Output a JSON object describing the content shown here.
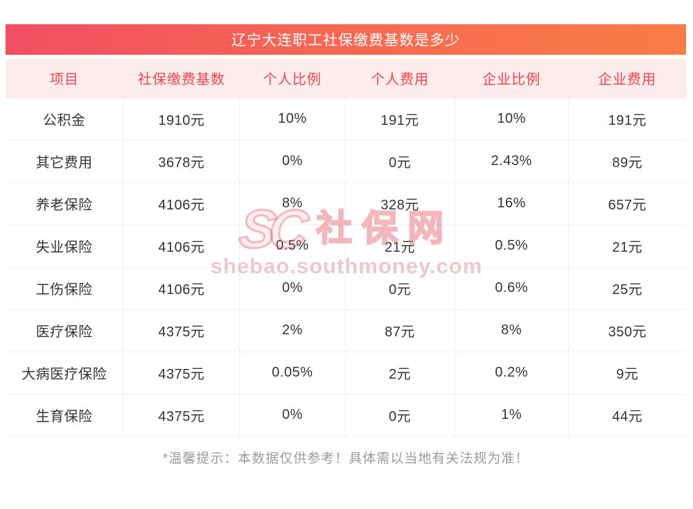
{
  "title": "辽宁大连职工社保缴费基数是多少",
  "footer_note": "*温馨提示：本数据仅供参考！具体需以当地有关法规为准！",
  "watermark": {
    "logo_text": "SC",
    "site_name": "社保网",
    "url_text": "shebao.southmoney.com"
  },
  "colors": {
    "banner_gradient_start": "#f24f62",
    "banner_gradient_end": "#f97d46",
    "header_bg": "#fdecec",
    "header_text": "#f2434f",
    "cell_text": "#333333",
    "border": "#efefef",
    "note_text": "#9b9b9b"
  },
  "chart_data": {
    "type": "table",
    "title": "辽宁大连职工社保缴费基数是多少",
    "columns": [
      "项目",
      "社保缴费基数",
      "个人比例",
      "个人费用",
      "企业比例",
      "企业费用"
    ],
    "rows": [
      [
        "公积金",
        "1910元",
        "10%",
        "191元",
        "10%",
        "191元"
      ],
      [
        "其它费用",
        "3678元",
        "0%",
        "0元",
        "2.43%",
        "89元"
      ],
      [
        "养老保险",
        "4106元",
        "8%",
        "328元",
        "16%",
        "657元"
      ],
      [
        "失业保险",
        "4106元",
        "0.5%",
        "21元",
        "0.5%",
        "21元"
      ],
      [
        "工伤保险",
        "4106元",
        "0%",
        "0元",
        "0.6%",
        "25元"
      ],
      [
        "医疗保险",
        "4375元",
        "2%",
        "87元",
        "8%",
        "350元"
      ],
      [
        "大病医疗保险",
        "4375元",
        "0.05%",
        "2元",
        "0.2%",
        "9元"
      ],
      [
        "生育保险",
        "4375元",
        "0%",
        "0元",
        "1%",
        "44元"
      ]
    ],
    "column_widths_pct": [
      17.3,
      17.1,
      15.5,
      16.1,
      16.7,
      17.3
    ]
  }
}
